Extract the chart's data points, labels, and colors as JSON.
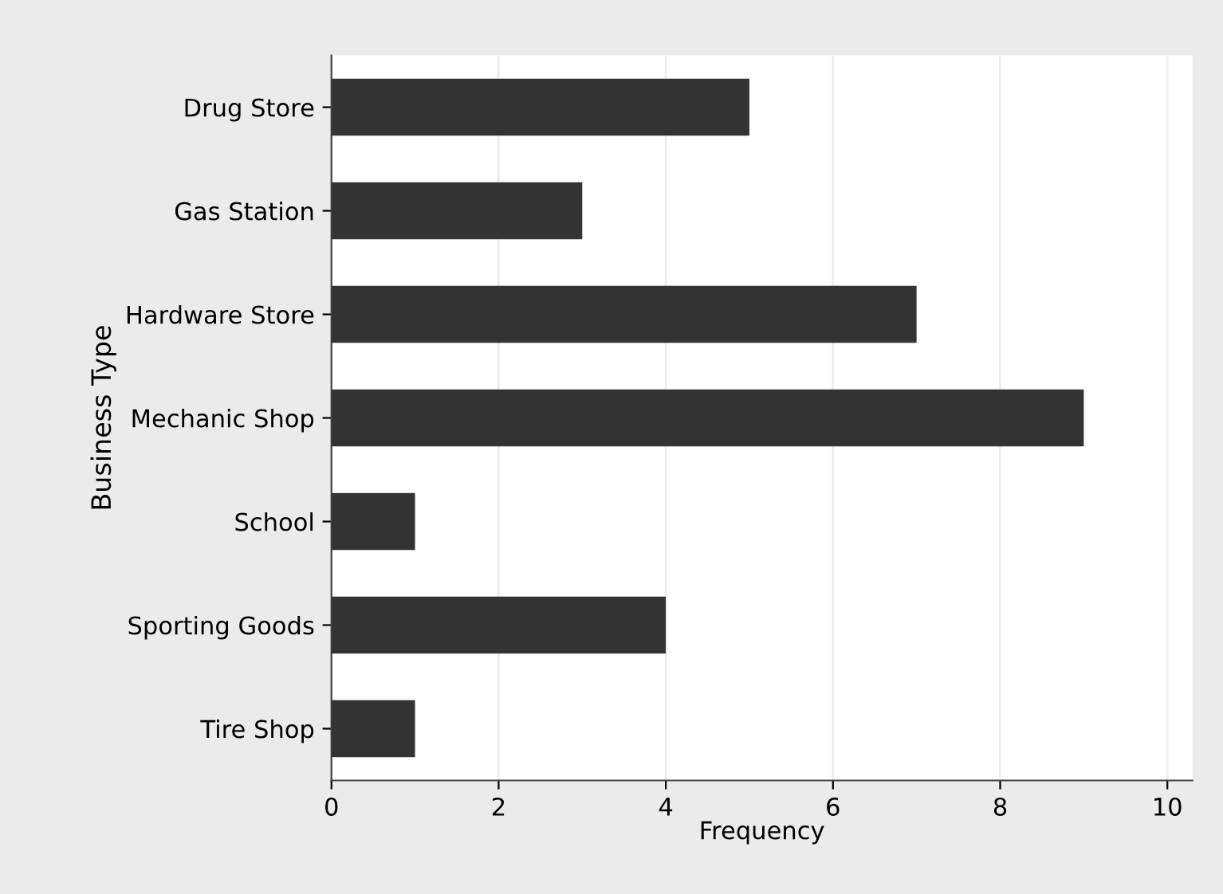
{
  "chart_data": {
    "type": "bar",
    "orientation": "horizontal",
    "xlabel": "Frequency",
    "ylabel": "Business Type",
    "categories": [
      "Drug Store",
      "Gas Station",
      "Hardware Store",
      "Mechanic Shop",
      "School",
      "Sporting Goods",
      "Tire Shop"
    ],
    "values": [
      5,
      3,
      7,
      9,
      1,
      4,
      1
    ],
    "color": "#333333",
    "xlim": [
      0,
      10.3
    ],
    "xticks": [
      0,
      2,
      4,
      6,
      8,
      10
    ],
    "grid": "x"
  }
}
